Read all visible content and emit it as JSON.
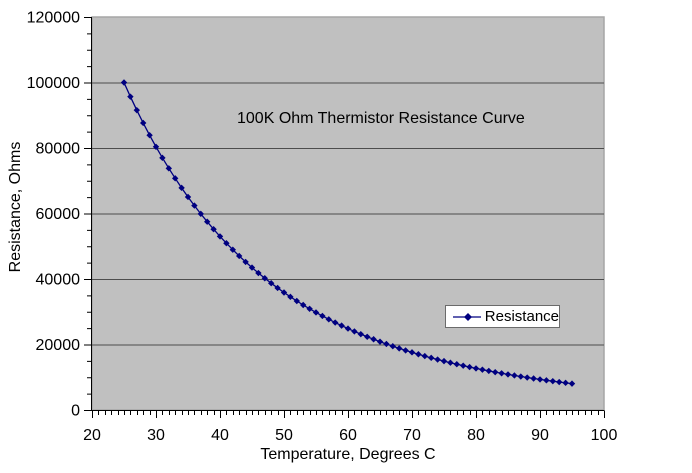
{
  "chart_data": {
    "type": "line",
    "title": "100K Ohm Thermistor Resistance Curve",
    "xlabel": "Temperature, Degrees C",
    "ylabel": "Resistance, Ohms",
    "xlim": [
      20,
      100
    ],
    "ylim": [
      0,
      120000
    ],
    "x_major_ticks": [
      20,
      30,
      40,
      50,
      60,
      70,
      80,
      90,
      100
    ],
    "x_minor_tick_step": 1,
    "y_major_ticks": [
      0,
      20000,
      40000,
      60000,
      80000,
      100000,
      120000
    ],
    "y_minor_tick_step": 5000,
    "grid": "horizontal major gridlines only",
    "legend": {
      "position": "inside right",
      "entries": [
        {
          "label": "Resistance",
          "color": "#000080",
          "marker": "diamond"
        }
      ]
    },
    "colors": {
      "chart_background": "#ffffff",
      "plot_background": "#c0c0c0",
      "plot_border": "#a6a6a6",
      "gridline": "#4d4d4d",
      "axis": "#000000",
      "series": "#000080",
      "text": "#000000",
      "legend_background": "#ffffff",
      "legend_border": "#6b6b6b"
    },
    "series": [
      {
        "name": "Resistance",
        "marker": "diamond",
        "color": "#000080",
        "x": [
          25,
          26,
          27,
          28,
          29,
          30,
          31,
          32,
          33,
          34,
          35,
          36,
          37,
          38,
          39,
          40,
          41,
          42,
          43,
          44,
          45,
          46,
          47,
          48,
          49,
          50,
          51,
          52,
          53,
          54,
          55,
          56,
          57,
          58,
          59,
          60,
          61,
          62,
          63,
          64,
          65,
          66,
          67,
          68,
          69,
          70,
          71,
          72,
          73,
          74,
          75,
          76,
          77,
          78,
          79,
          80,
          81,
          82,
          83,
          84,
          85,
          86,
          87,
          88,
          89,
          90,
          91,
          92,
          93,
          94,
          95
        ],
        "y": [
          100000,
          95670,
          91550,
          87640,
          83910,
          80370,
          77000,
          73790,
          70740,
          67830,
          65050,
          62410,
          59890,
          57490,
          55200,
          53010,
          50930,
          48940,
          47030,
          45220,
          43480,
          41820,
          40230,
          38720,
          37270,
          35880,
          34550,
          33280,
          32060,
          30900,
          29780,
          28710,
          27690,
          26710,
          25760,
          24860,
          23990,
          23160,
          22360,
          21600,
          20860,
          20160,
          19480,
          18820,
          18200,
          17600,
          17020,
          16460,
          15930,
          15410,
          14920,
          14440,
          13980,
          13540,
          13110,
          12700,
          12310,
          11930,
          11560,
          11210,
          10870,
          10540,
          10220,
          9910,
          9620,
          9340,
          9060,
          8800,
          8540,
          8290,
          8050
        ]
      }
    ]
  }
}
